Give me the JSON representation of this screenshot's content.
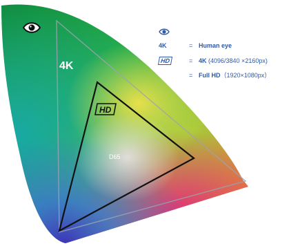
{
  "diagram": {
    "label_4k": "4K",
    "label_hd": "HD",
    "label_white_point": "D65",
    "icons": {
      "eye_gamut": "eye-icon",
      "eye_legend": "eye-icon"
    }
  },
  "legend": {
    "rows": [
      {
        "key": "4K",
        "equals": "=",
        "name": "Human eye",
        "detail": ""
      },
      {
        "key": "HD",
        "equals": "=",
        "name": "4K",
        "detail": " (4096/3840 ×2160px)"
      },
      {
        "key": "",
        "equals": "=",
        "name": "Full HD",
        "detail": "（1920×1080px）"
      }
    ]
  },
  "colors": {
    "legend_text": "#2f5aa8",
    "triangle_outline": "#111111",
    "outer_outline": "#9aa3b0"
  }
}
